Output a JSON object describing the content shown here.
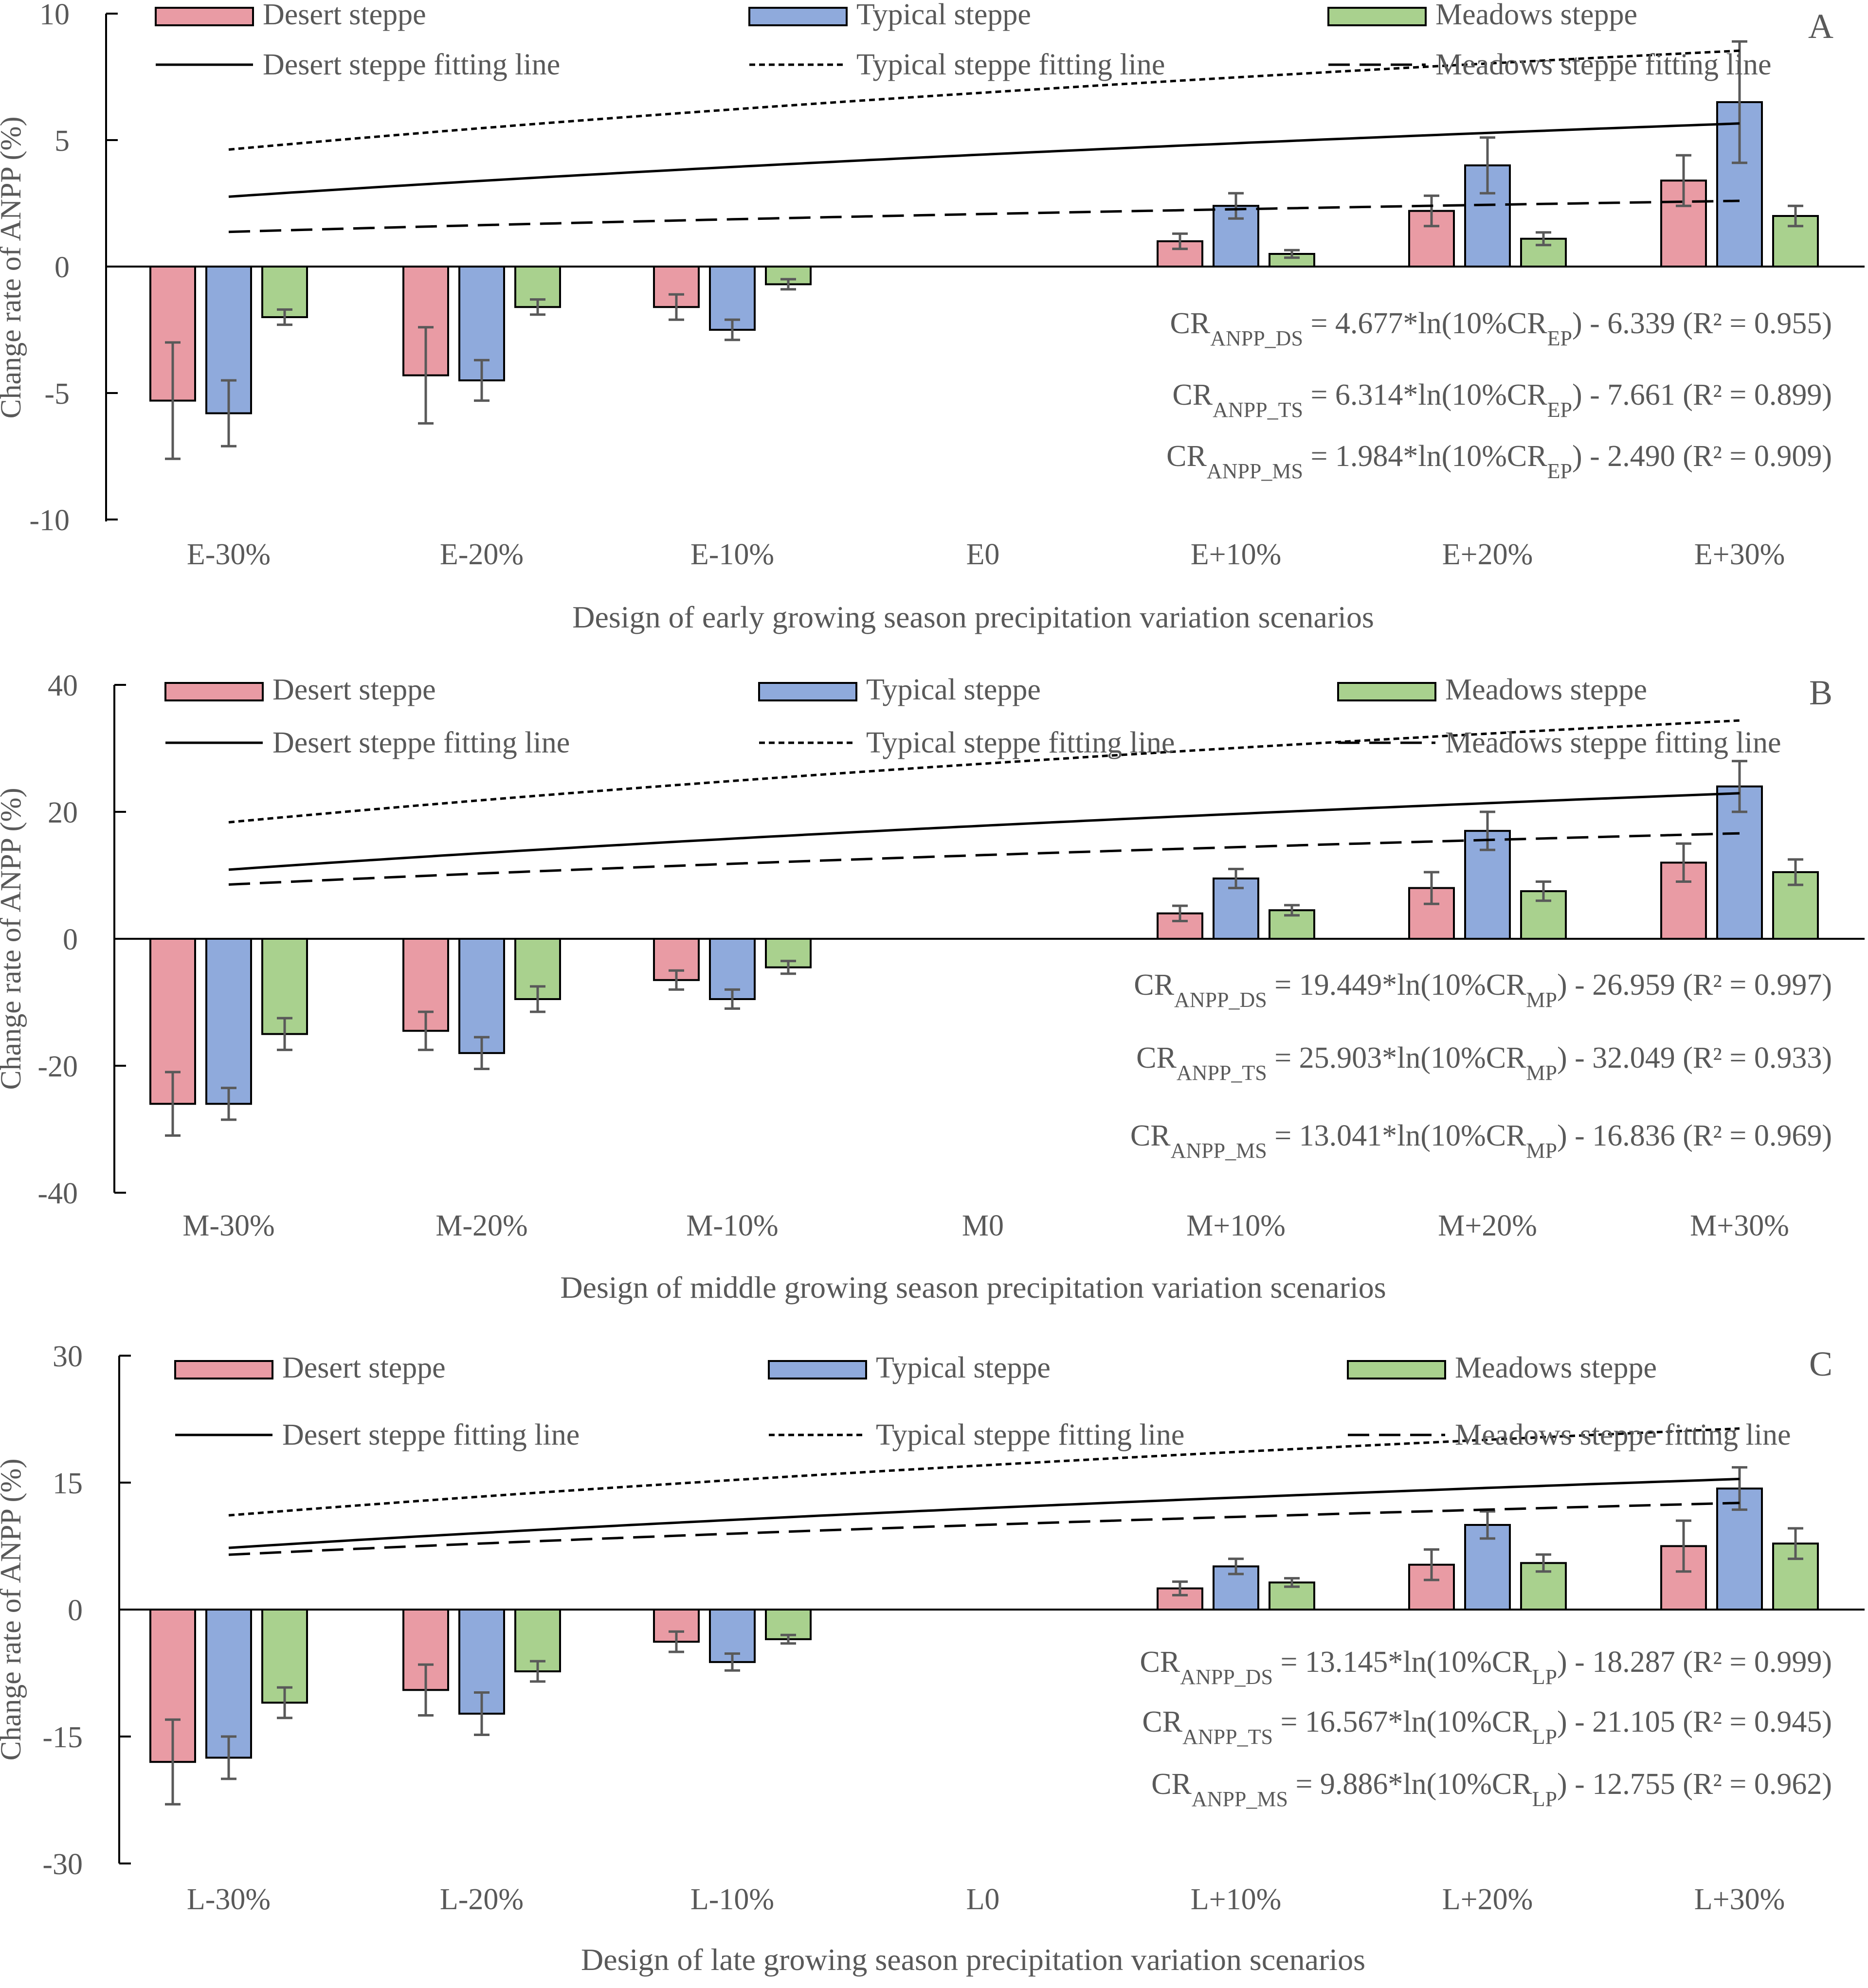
{
  "chart_data": [
    {
      "type": "bar",
      "panel_label": "A",
      "xlabel": "Design of early growing season precipitation variation scenarios",
      "ylabel": "Change rate of ANPP (%)",
      "ylim": [
        -10,
        10
      ],
      "yticks": [
        10,
        5,
        0,
        -5,
        -10
      ],
      "categories": [
        "E-30%",
        "E-20%",
        "E-10%",
        "E0",
        "E+10%",
        "E+20%",
        "E+30%"
      ],
      "series": [
        {
          "name": "Desert steppe",
          "color": "#E99BA4",
          "values": [
            -5.3,
            -4.3,
            -1.6,
            null,
            1.0,
            2.2,
            3.4
          ],
          "errors": [
            2.3,
            1.9,
            0.5,
            null,
            0.3,
            0.6,
            1.0
          ]
        },
        {
          "name": "Typical steppe",
          "color": "#8FAADC",
          "values": [
            -5.8,
            -4.5,
            -2.5,
            null,
            2.4,
            4.0,
            6.5
          ],
          "errors": [
            1.3,
            0.8,
            0.4,
            null,
            0.5,
            1.1,
            2.4
          ]
        },
        {
          "name": "Meadows steppe",
          "color": "#A9D18E",
          "values": [
            -2.0,
            -1.6,
            -0.7,
            null,
            0.5,
            1.1,
            2.0
          ],
          "errors": [
            0.3,
            0.3,
            0.2,
            null,
            0.15,
            0.25,
            0.4
          ]
        }
      ],
      "fits": [
        {
          "name": "Desert steppe fitting line",
          "style": "solid",
          "a": 4.677,
          "b": -6.339
        },
        {
          "name": "Typical steppe fitting line",
          "style": "dotted",
          "a": 6.314,
          "b": -7.661
        },
        {
          "name": "Meadows steppe fitting line",
          "style": "dashed",
          "a": 1.984,
          "b": -2.49
        }
      ],
      "equations": [
        {
          "lhs": "CR",
          "lhs_sub": "ANPP_DS",
          "mid": " = 4.677*ln(10%CR",
          "mid_sub": "EP",
          "rhs": ")  - 6.339  (R² = 0.955)"
        },
        {
          "lhs": "CR",
          "lhs_sub": "ANPP_TS",
          "mid": " = 6.314*ln(10%CR",
          "mid_sub": "EP",
          "rhs": ")  - 7.661  (R² = 0.899)"
        },
        {
          "lhs": "CR",
          "lhs_sub": "ANPP_MS",
          "mid": " = 1.984*ln(10%CR",
          "mid_sub": "EP",
          "rhs": ")  - 2.490  (R² = 0.909)"
        }
      ]
    },
    {
      "type": "bar",
      "panel_label": "B",
      "xlabel": "Design of middle growing season precipitation variation scenarios",
      "ylabel": "Change rate of ANPP (%)",
      "ylim": [
        -40,
        40
      ],
      "yticks": [
        40,
        20,
        0,
        -20,
        -40
      ],
      "categories": [
        "M-30%",
        "M-20%",
        "M-10%",
        "M0",
        "M+10%",
        "M+20%",
        "M+30%"
      ],
      "series": [
        {
          "name": "Desert steppe",
          "color": "#E99BA4",
          "values": [
            -26.0,
            -14.5,
            -6.5,
            null,
            4.0,
            8.0,
            12.0
          ],
          "errors": [
            5.0,
            3.0,
            1.5,
            null,
            1.2,
            2.5,
            3.0
          ]
        },
        {
          "name": "Typical steppe",
          "color": "#8FAADC",
          "values": [
            -26.0,
            -18.0,
            -9.5,
            null,
            9.5,
            17.0,
            24.0
          ],
          "errors": [
            2.5,
            2.5,
            1.5,
            null,
            1.5,
            3.0,
            4.0
          ]
        },
        {
          "name": "Meadows steppe",
          "color": "#A9D18E",
          "values": [
            -15.0,
            -9.5,
            -4.5,
            null,
            4.5,
            7.5,
            10.5
          ],
          "errors": [
            2.5,
            2.0,
            1.0,
            null,
            0.8,
            1.5,
            2.0
          ]
        }
      ],
      "fits": [
        {
          "name": "Desert steppe fitting line",
          "style": "solid",
          "a": 19.449,
          "b": -26.959
        },
        {
          "name": "Typical steppe fitting line",
          "style": "dotted",
          "a": 25.903,
          "b": -32.049
        },
        {
          "name": "Meadows steppe fitting line",
          "style": "dashed",
          "a": 13.041,
          "b": -16.836
        }
      ],
      "equations": [
        {
          "lhs": "CR",
          "lhs_sub": "ANPP_DS",
          "mid": " = 19.449*ln(10%CR",
          "mid_sub": "MP",
          "rhs": ")  - 26.959  (R² = 0.997)"
        },
        {
          "lhs": "CR",
          "lhs_sub": "ANPP_TS",
          "mid": " = 25.903*ln(10%CR",
          "mid_sub": "MP",
          "rhs": ")  - 32.049  (R² = 0.933)"
        },
        {
          "lhs": "CR",
          "lhs_sub": "ANPP_MS",
          "mid": " = 13.041*ln(10%CR",
          "mid_sub": "MP",
          "rhs": ")  - 16.836  (R² = 0.969)"
        }
      ]
    },
    {
      "type": "bar",
      "panel_label": "C",
      "xlabel": "Design of late growing season precipitation variation scenarios",
      "ylabel": "Change rate of ANPP (%)",
      "ylim": [
        -30,
        30
      ],
      "yticks": [
        30,
        15,
        0,
        -15,
        -30
      ],
      "categories": [
        "L-30%",
        "L-20%",
        "L-10%",
        "L0",
        "L+10%",
        "L+20%",
        "L+30%"
      ],
      "series": [
        {
          "name": "Desert steppe",
          "color": "#E99BA4",
          "values": [
            -18.0,
            -9.5,
            -3.8,
            null,
            2.5,
            5.3,
            7.5
          ],
          "errors": [
            5.0,
            3.0,
            1.2,
            null,
            0.8,
            1.8,
            3.0
          ]
        },
        {
          "name": "Typical steppe",
          "color": "#8FAADC",
          "values": [
            -17.5,
            -12.3,
            -6.2,
            null,
            5.1,
            10.0,
            14.3
          ],
          "errors": [
            2.5,
            2.5,
            1.0,
            null,
            0.9,
            1.6,
            2.5
          ]
        },
        {
          "name": "Meadows steppe",
          "color": "#A9D18E",
          "values": [
            -11.0,
            -7.3,
            -3.5,
            null,
            3.2,
            5.5,
            7.8
          ],
          "errors": [
            1.8,
            1.2,
            0.5,
            null,
            0.5,
            1.0,
            1.8
          ]
        }
      ],
      "fits": [
        {
          "name": "Desert steppe fitting line",
          "style": "solid",
          "a": 13.145,
          "b": -18.287
        },
        {
          "name": "Typical steppe fitting line",
          "style": "dotted",
          "a": 16.567,
          "b": -21.105
        },
        {
          "name": "Meadows steppe fitting line",
          "style": "dashed",
          "a": 9.886,
          "b": -12.755
        }
      ],
      "equations": [
        {
          "lhs": "CR",
          "lhs_sub": "ANPP_DS",
          "mid": " = 13.145*ln(10%CR",
          "mid_sub": "LP",
          "rhs": ")  - 18.287  (R² = 0.999)"
        },
        {
          "lhs": "CR",
          "lhs_sub": "ANPP_TS",
          "mid": " = 16.567*ln(10%CR",
          "mid_sub": "LP",
          "rhs": ")  - 21.105  (R² = 0.945)"
        },
        {
          "lhs": "CR",
          "lhs_sub": "ANPP_MS",
          "mid": " = 9.886*ln(10%CR",
          "mid_sub": "LP",
          "rhs": ")  - 12.755  (R² = 0.962)"
        }
      ]
    }
  ]
}
